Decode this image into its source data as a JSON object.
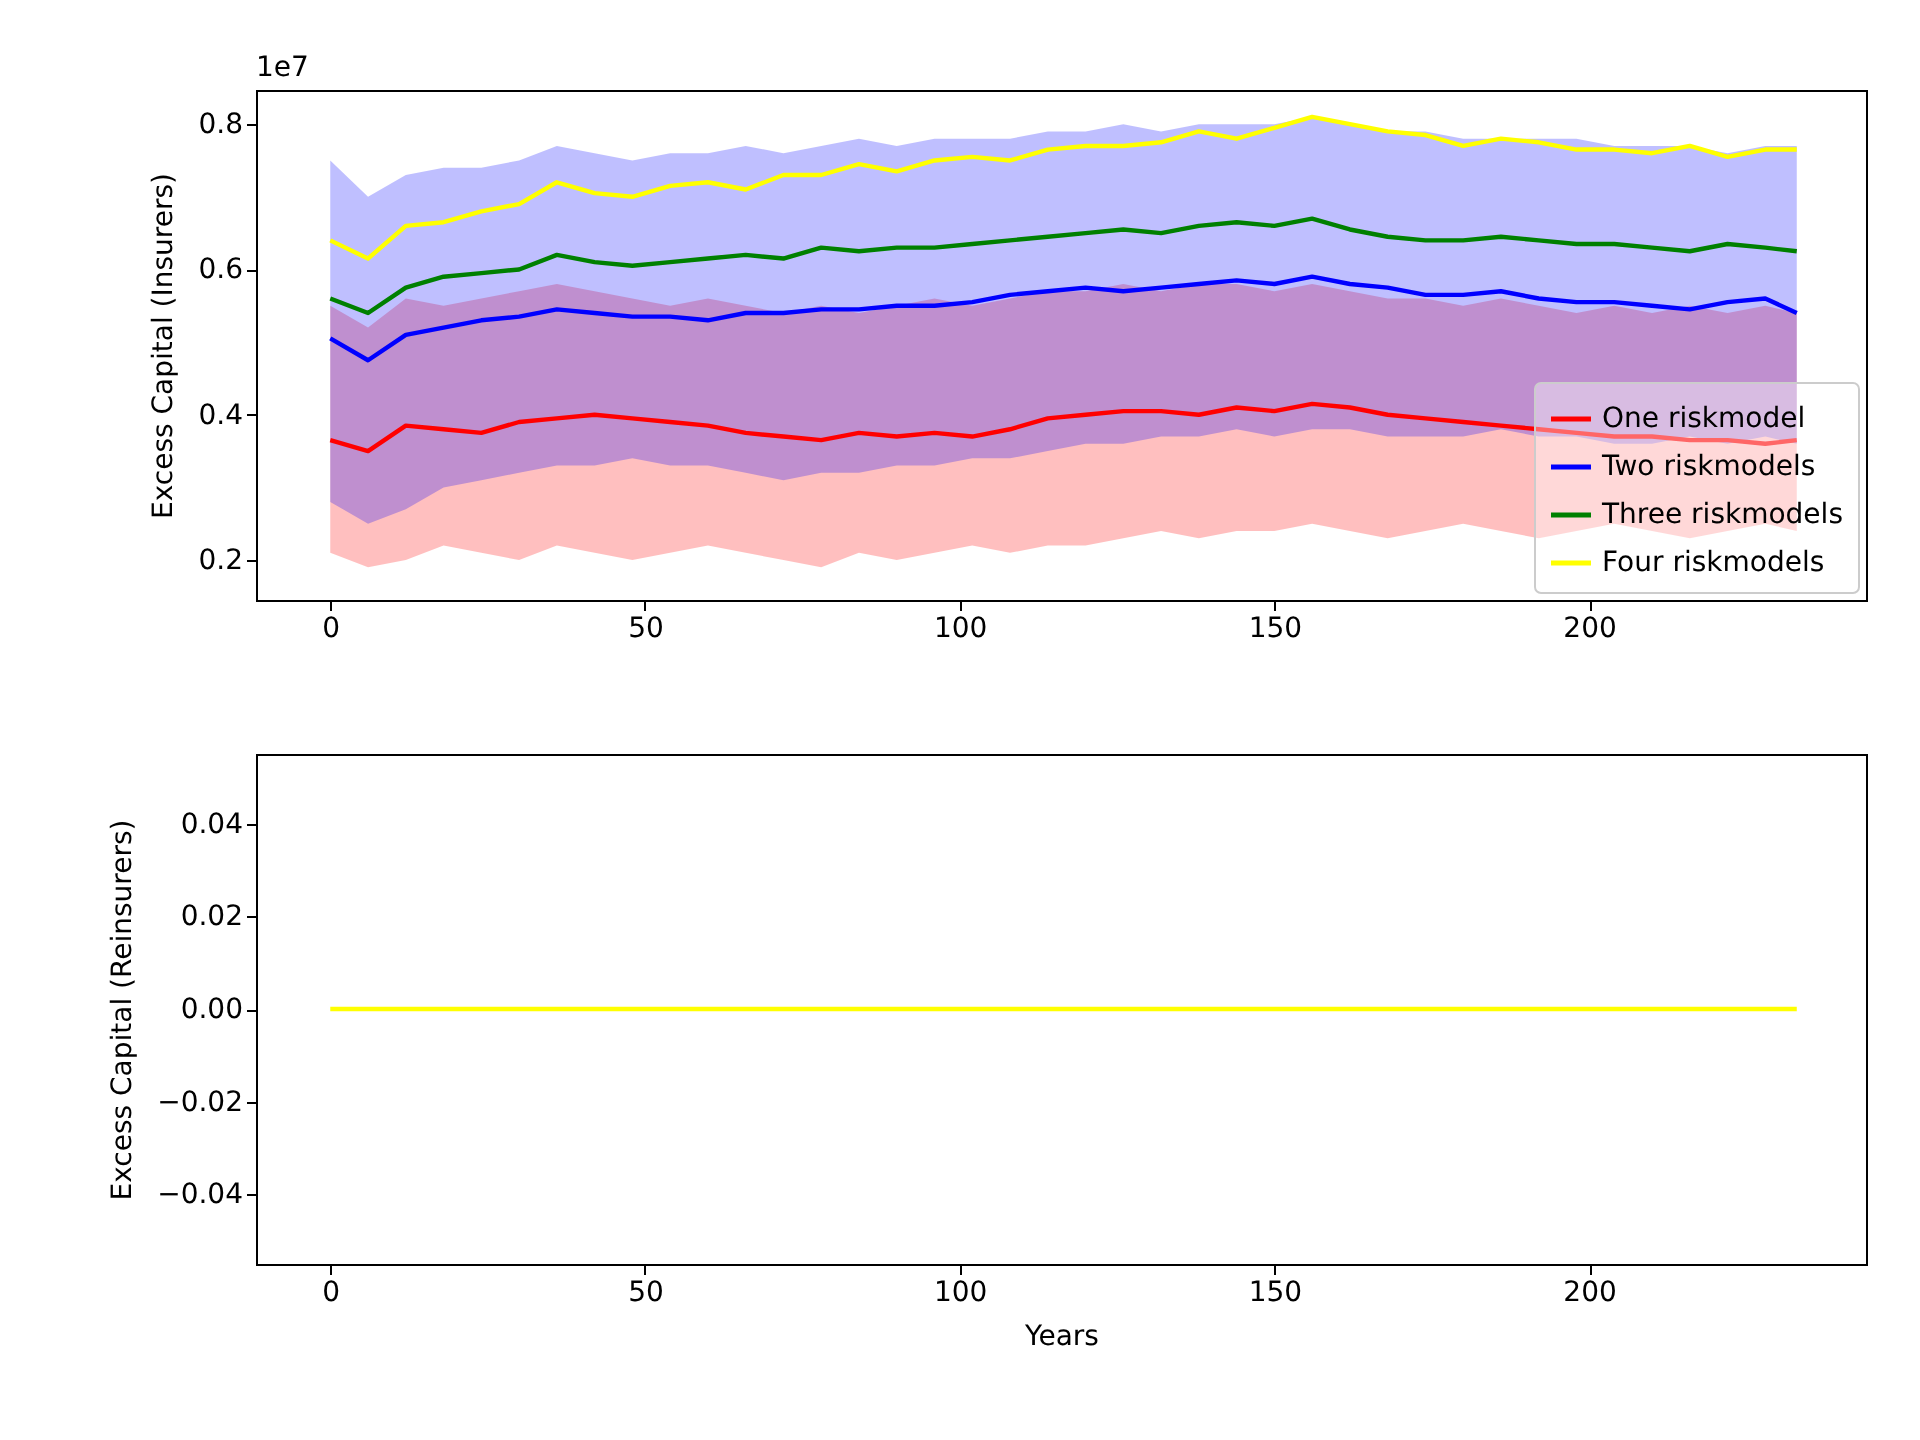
{
  "chart_data": [
    {
      "type": "line",
      "ylabel": "Excess Capital (Insurers)",
      "annotations": [
        "1e7"
      ],
      "legend": "bottom right",
      "x": [
        0,
        6,
        12,
        18,
        24,
        30,
        36,
        42,
        48,
        54,
        60,
        66,
        72,
        78,
        84,
        90,
        96,
        102,
        108,
        114,
        120,
        126,
        132,
        138,
        144,
        150,
        156,
        162,
        168,
        174,
        180,
        186,
        192,
        198,
        204,
        210,
        216,
        222,
        228,
        233
      ],
      "xlim": [
        -11.8,
        244
      ],
      "xticks": [
        0,
        50,
        100,
        150,
        200
      ],
      "ylim": [
        0.145,
        0.847
      ],
      "yticks": [
        0.2,
        0.4,
        0.6,
        0.8
      ],
      "series": [
        {
          "name": "One riskmodel",
          "color": "#ff0000",
          "values": [
            0.365,
            0.35,
            0.385,
            0.38,
            0.375,
            0.39,
            0.395,
            0.4,
            0.395,
            0.39,
            0.385,
            0.375,
            0.37,
            0.365,
            0.375,
            0.37,
            0.375,
            0.37,
            0.38,
            0.395,
            0.4,
            0.405,
            0.405,
            0.4,
            0.41,
            0.405,
            0.415,
            0.41,
            0.4,
            0.395,
            0.39,
            0.385,
            0.38,
            0.375,
            0.37,
            0.37,
            0.365,
            0.365,
            0.36,
            0.365
          ],
          "lower": [
            0.21,
            0.19,
            0.2,
            0.22,
            0.21,
            0.2,
            0.22,
            0.21,
            0.2,
            0.21,
            0.22,
            0.21,
            0.2,
            0.19,
            0.21,
            0.2,
            0.21,
            0.22,
            0.21,
            0.22,
            0.22,
            0.23,
            0.24,
            0.23,
            0.24,
            0.24,
            0.25,
            0.24,
            0.23,
            0.24,
            0.25,
            0.24,
            0.23,
            0.24,
            0.25,
            0.24,
            0.23,
            0.24,
            0.25,
            0.24
          ],
          "upper": [
            0.55,
            0.52,
            0.56,
            0.55,
            0.56,
            0.57,
            0.58,
            0.57,
            0.56,
            0.55,
            0.56,
            0.55,
            0.54,
            0.55,
            0.54,
            0.55,
            0.56,
            0.55,
            0.56,
            0.57,
            0.57,
            0.58,
            0.57,
            0.58,
            0.58,
            0.57,
            0.58,
            0.57,
            0.56,
            0.56,
            0.55,
            0.56,
            0.55,
            0.54,
            0.55,
            0.54,
            0.55,
            0.54,
            0.55,
            0.54
          ]
        },
        {
          "name": "Two riskmodels",
          "color": "#0000ff",
          "values": [
            0.505,
            0.475,
            0.51,
            0.52,
            0.53,
            0.535,
            0.545,
            0.54,
            0.535,
            0.535,
            0.53,
            0.54,
            0.54,
            0.545,
            0.545,
            0.55,
            0.55,
            0.555,
            0.565,
            0.57,
            0.575,
            0.57,
            0.575,
            0.58,
            0.585,
            0.58,
            0.59,
            0.58,
            0.575,
            0.565,
            0.565,
            0.57,
            0.56,
            0.555,
            0.555,
            0.55,
            0.545,
            0.555,
            0.56,
            0.54
          ],
          "lower": [
            0.28,
            0.25,
            0.27,
            0.3,
            0.31,
            0.32,
            0.33,
            0.33,
            0.34,
            0.33,
            0.33,
            0.32,
            0.31,
            0.32,
            0.32,
            0.33,
            0.33,
            0.34,
            0.34,
            0.35,
            0.36,
            0.36,
            0.37,
            0.37,
            0.38,
            0.37,
            0.38,
            0.38,
            0.37,
            0.37,
            0.37,
            0.38,
            0.37,
            0.37,
            0.36,
            0.36,
            0.37,
            0.36,
            0.37,
            0.36
          ],
          "upper": [
            0.75,
            0.7,
            0.73,
            0.74,
            0.74,
            0.75,
            0.77,
            0.76,
            0.75,
            0.76,
            0.76,
            0.77,
            0.76,
            0.77,
            0.78,
            0.77,
            0.78,
            0.78,
            0.78,
            0.79,
            0.79,
            0.8,
            0.79,
            0.8,
            0.8,
            0.8,
            0.81,
            0.8,
            0.79,
            0.79,
            0.78,
            0.78,
            0.78,
            0.78,
            0.77,
            0.77,
            0.77,
            0.76,
            0.77,
            0.77
          ]
        },
        {
          "name": "Three riskmodels",
          "color": "#008000",
          "values": [
            0.56,
            0.54,
            0.575,
            0.59,
            0.595,
            0.6,
            0.62,
            0.61,
            0.605,
            0.61,
            0.615,
            0.62,
            0.615,
            0.63,
            0.625,
            0.63,
            0.63,
            0.635,
            0.64,
            0.645,
            0.65,
            0.655,
            0.65,
            0.66,
            0.665,
            0.66,
            0.67,
            0.655,
            0.645,
            0.64,
            0.64,
            0.645,
            0.64,
            0.635,
            0.635,
            0.63,
            0.625,
            0.635,
            0.63,
            0.625
          ]
        },
        {
          "name": "Four riskmodels",
          "color": "#ffff00",
          "values": [
            0.64,
            0.615,
            0.66,
            0.665,
            0.68,
            0.69,
            0.72,
            0.705,
            0.7,
            0.715,
            0.72,
            0.71,
            0.73,
            0.73,
            0.745,
            0.735,
            0.75,
            0.755,
            0.75,
            0.765,
            0.77,
            0.77,
            0.775,
            0.79,
            0.78,
            0.795,
            0.81,
            0.8,
            0.79,
            0.785,
            0.77,
            0.78,
            0.775,
            0.765,
            0.765,
            0.76,
            0.77,
            0.755,
            0.765,
            0.765
          ]
        }
      ]
    },
    {
      "type": "line",
      "ylabel": "Excess Capital (Reinsurers)",
      "xlabel": "Years",
      "x": [
        0,
        233
      ],
      "xlim": [
        -11.8,
        244
      ],
      "xticks": [
        0,
        50,
        100,
        150,
        200
      ],
      "ylim": [
        -0.055,
        0.055
      ],
      "yticks": [
        {
          "value": -0.04,
          "label": "−0.04"
        },
        {
          "value": -0.02,
          "label": "−0.02"
        },
        {
          "value": 0,
          "label": "0.00"
        },
        {
          "value": 0.02,
          "label": "0.02"
        },
        {
          "value": 0.04,
          "label": "0.04"
        }
      ],
      "series": [
        {
          "color": "#ff0000",
          "values": [
            null,
            null
          ]
        },
        {
          "color": "#0000ff",
          "values": [
            null,
            null
          ]
        },
        {
          "color": "#008000",
          "values": [
            null,
            null
          ]
        },
        {
          "color": "#ffff00",
          "values": [
            0,
            0
          ]
        }
      ]
    }
  ]
}
